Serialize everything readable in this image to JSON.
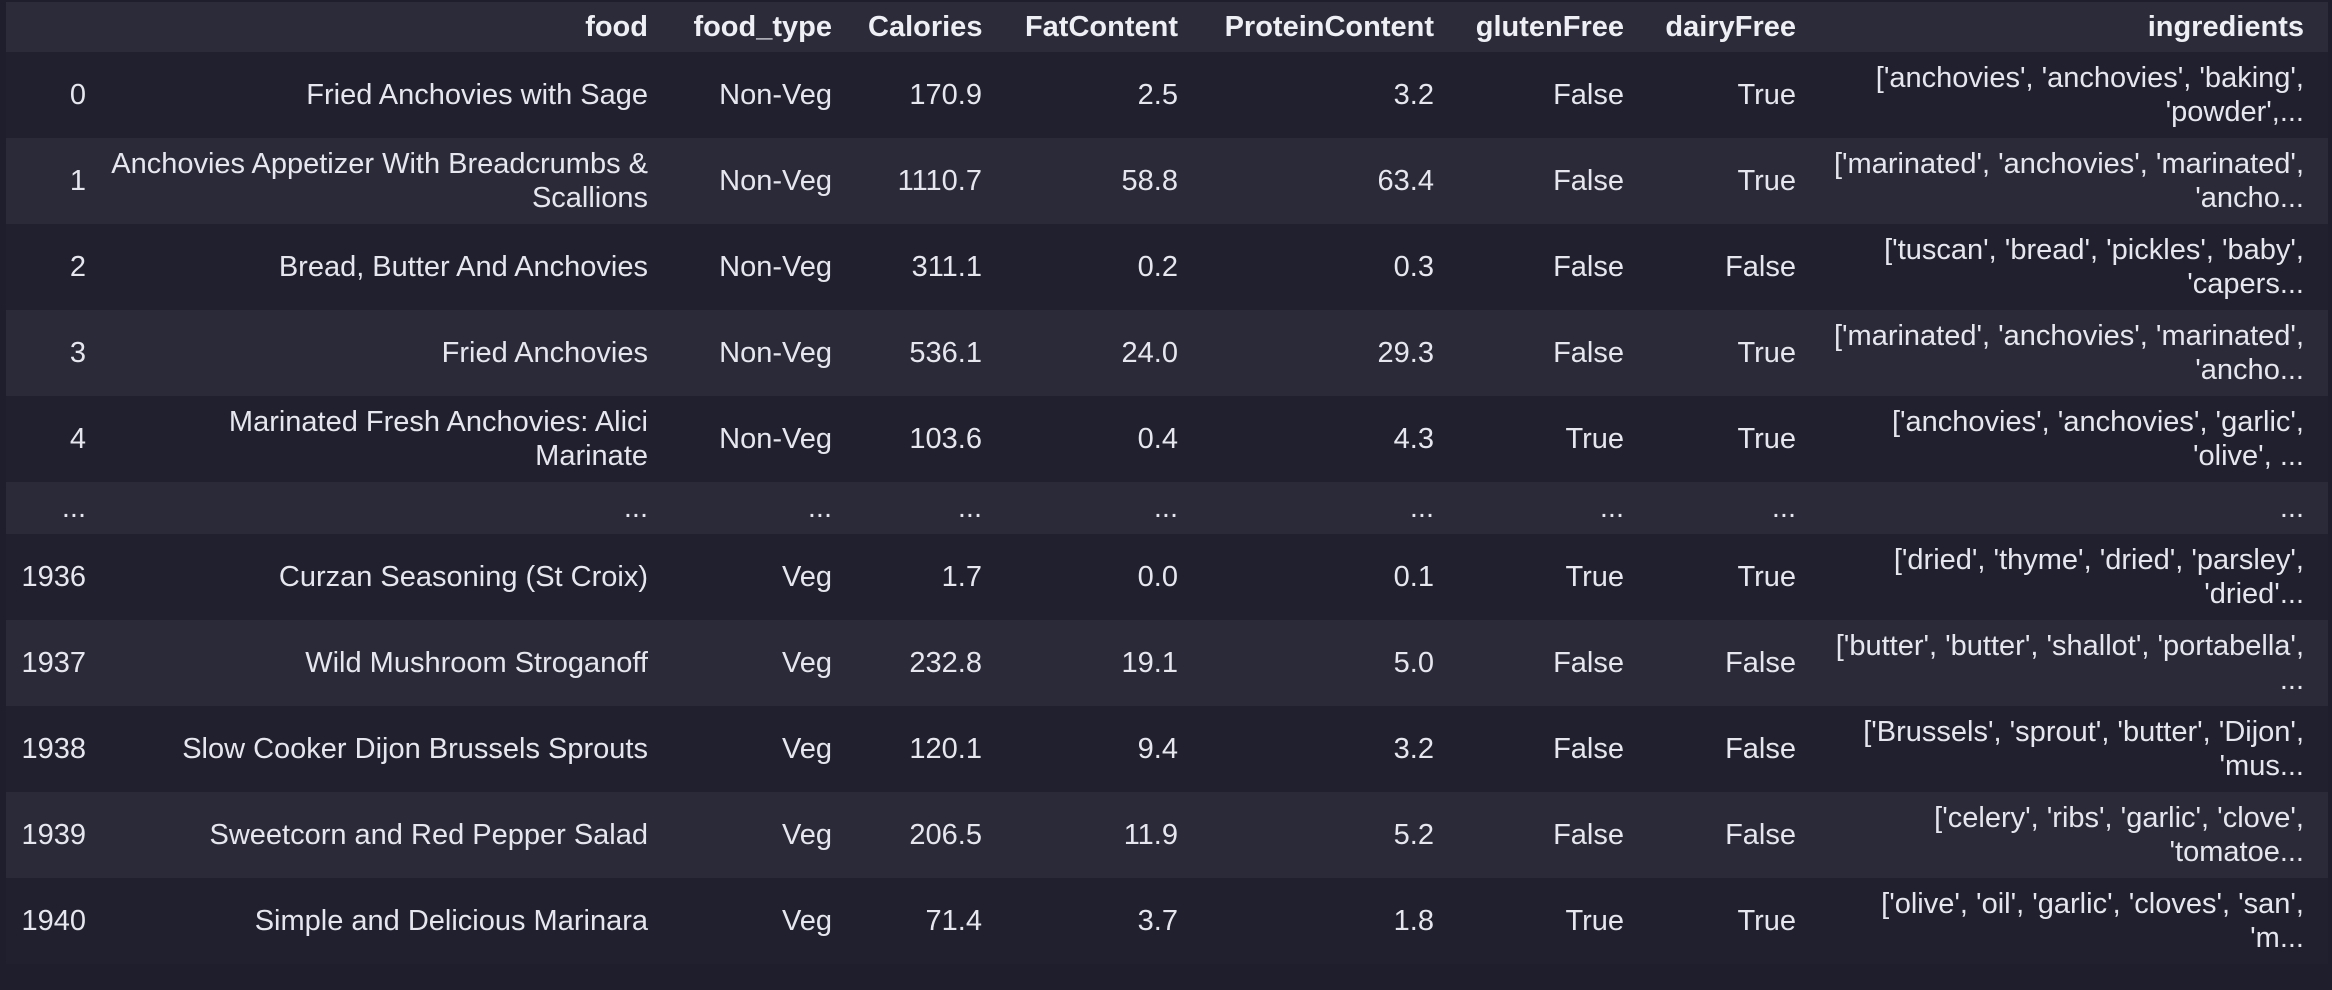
{
  "table": {
    "columns": [
      "",
      "food",
      "food_type",
      "Calories",
      "FatContent",
      "ProteinContent",
      "glutenFree",
      "dairyFree",
      "ingredients"
    ],
    "rows": [
      {
        "index": "0",
        "food": "Fried Anchovies with Sage",
        "food_type": "Non-Veg",
        "calories": "170.9",
        "fat": "2.5",
        "protein": "3.2",
        "gluten_free": "False",
        "dairy_free": "True",
        "ingredients": "['anchovies', 'anchovies', 'baking', 'powder',..."
      },
      {
        "index": "1",
        "food": "Anchovies Appetizer With Breadcrumbs & Scallions",
        "food_type": "Non-Veg",
        "calories": "1110.7",
        "fat": "58.8",
        "protein": "63.4",
        "gluten_free": "False",
        "dairy_free": "True",
        "ingredients": "['marinated', 'anchovies', 'marinated', 'ancho..."
      },
      {
        "index": "2",
        "food": "Bread, Butter And Anchovies",
        "food_type": "Non-Veg",
        "calories": "311.1",
        "fat": "0.2",
        "protein": "0.3",
        "gluten_free": "False",
        "dairy_free": "False",
        "ingredients": "['tuscan', 'bread', 'pickles', 'baby', 'capers..."
      },
      {
        "index": "3",
        "food": "Fried Anchovies",
        "food_type": "Non-Veg",
        "calories": "536.1",
        "fat": "24.0",
        "protein": "29.3",
        "gluten_free": "False",
        "dairy_free": "True",
        "ingredients": "['marinated', 'anchovies', 'marinated', 'ancho..."
      },
      {
        "index": "4",
        "food": "Marinated Fresh Anchovies: Alici Marinate",
        "food_type": "Non-Veg",
        "calories": "103.6",
        "fat": "0.4",
        "protein": "4.3",
        "gluten_free": "True",
        "dairy_free": "True",
        "ingredients": "['anchovies', 'anchovies', 'garlic', 'olive', ..."
      },
      {
        "index": "...",
        "food": "...",
        "food_type": "...",
        "calories": "...",
        "fat": "...",
        "protein": "...",
        "gluten_free": "...",
        "dairy_free": "...",
        "ingredients": "..."
      },
      {
        "index": "1936",
        "food": "Curzan Seasoning (St Croix)",
        "food_type": "Veg",
        "calories": "1.7",
        "fat": "0.0",
        "protein": "0.1",
        "gluten_free": "True",
        "dairy_free": "True",
        "ingredients": "['dried', 'thyme', 'dried', 'parsley', 'dried'..."
      },
      {
        "index": "1937",
        "food": "Wild Mushroom Stroganoff",
        "food_type": "Veg",
        "calories": "232.8",
        "fat": "19.1",
        "protein": "5.0",
        "gluten_free": "False",
        "dairy_free": "False",
        "ingredients": "['butter', 'butter', 'shallot', 'portabella', ..."
      },
      {
        "index": "1938",
        "food": "Slow Cooker Dijon Brussels Sprouts",
        "food_type": "Veg",
        "calories": "120.1",
        "fat": "9.4",
        "protein": "3.2",
        "gluten_free": "False",
        "dairy_free": "False",
        "ingredients": "['Brussels', 'sprout', 'butter', 'Dijon', 'mus..."
      },
      {
        "index": "1939",
        "food": "Sweetcorn and Red Pepper Salad",
        "food_type": "Veg",
        "calories": "206.5",
        "fat": "11.9",
        "protein": "5.2",
        "gluten_free": "False",
        "dairy_free": "False",
        "ingredients": "['celery', 'ribs', 'garlic', 'clove', 'tomatoe..."
      },
      {
        "index": "1940",
        "food": "Simple and Delicious Marinara",
        "food_type": "Veg",
        "calories": "71.4",
        "fat": "3.7",
        "protein": "1.8",
        "gluten_free": "True",
        "dairy_free": "True",
        "ingredients": "['olive', 'oil', 'garlic', 'cloves', 'san', 'm..."
      }
    ]
  }
}
